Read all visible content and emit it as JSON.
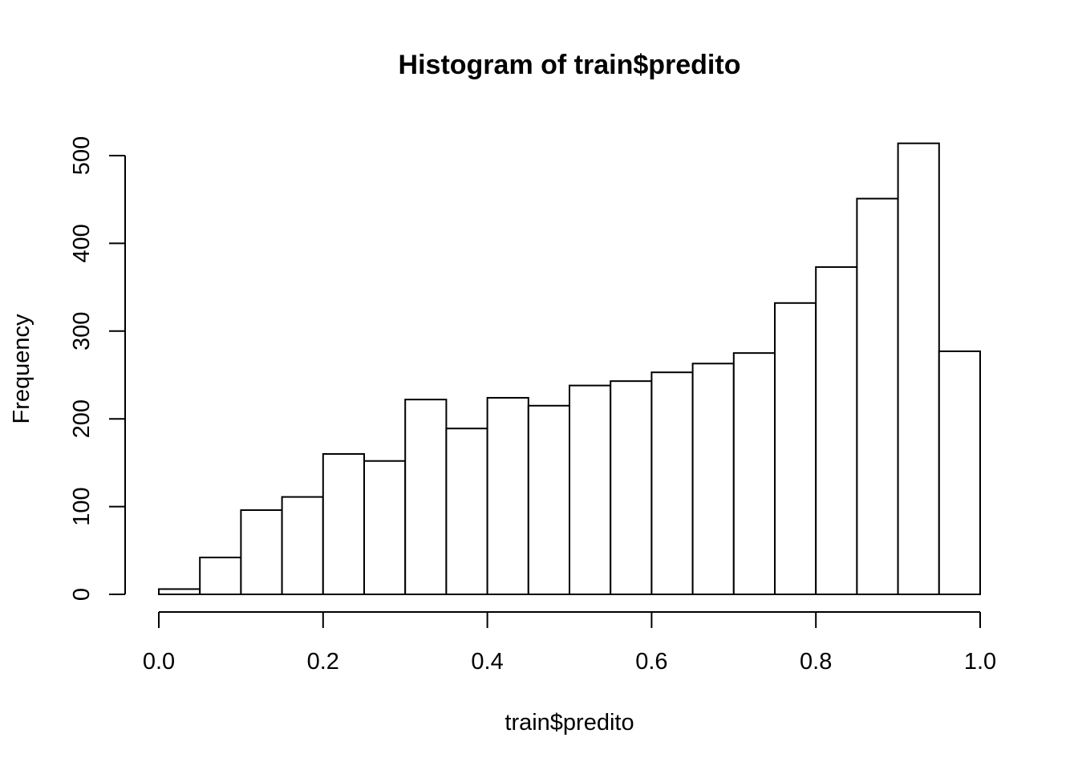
{
  "chart_data": {
    "type": "bar",
    "subtype": "histogram",
    "title": "Histogram of train$predito",
    "xlabel": "train$predito",
    "ylabel": "Frequency",
    "bin_edges": [
      0.0,
      0.05,
      0.1,
      0.15,
      0.2,
      0.25,
      0.3,
      0.35,
      0.4,
      0.45,
      0.5,
      0.55,
      0.6,
      0.65,
      0.7,
      0.75,
      0.8,
      0.85,
      0.9,
      0.95,
      1.0
    ],
    "values": [
      6,
      42,
      96,
      111,
      160,
      152,
      222,
      189,
      224,
      215,
      238,
      243,
      253,
      263,
      275,
      332,
      373,
      451,
      514,
      277
    ],
    "xlim": [
      0.0,
      1.0
    ],
    "ylim": [
      0,
      500
    ],
    "x_ticks": [
      "0.0",
      "0.2",
      "0.4",
      "0.6",
      "0.8",
      "1.0"
    ],
    "y_ticks": [
      "0",
      "100",
      "200",
      "300",
      "400",
      "500"
    ],
    "bar_fill": "#ffffff",
    "bar_stroke": "#000000",
    "grid": false,
    "legend": "none"
  }
}
